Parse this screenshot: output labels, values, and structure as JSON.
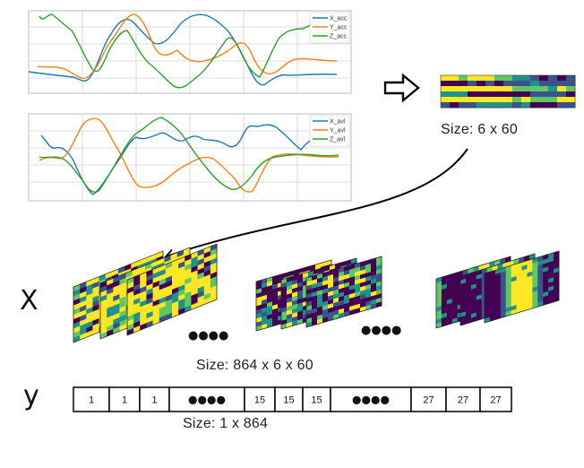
{
  "plots": [
    {
      "legend": [
        "X_acc",
        "Y_acc",
        "Z_acc"
      ]
    },
    {
      "legend": [
        "X_avl",
        "Y_avl",
        "Z_avl"
      ]
    }
  ],
  "series_colors": [
    "#1f77b4",
    "#ff7f0e",
    "#2ca02c"
  ],
  "single_size_label": "Size: 6 x 60",
  "x_label": "X",
  "x_size_label": "Size: 864 x 6 x 60",
  "y_label": "y",
  "y_size_label": "Size: 1 x 864",
  "ellipsis": "●●●●",
  "y_cells": [
    "1",
    "1",
    "1",
    "●●●●",
    "15",
    "15",
    "15",
    "●●●●",
    "27",
    "27",
    "27"
  ],
  "colormap": [
    "#440154",
    "#3b528b",
    "#21918c",
    "#5ec962",
    "#fde725"
  ]
}
